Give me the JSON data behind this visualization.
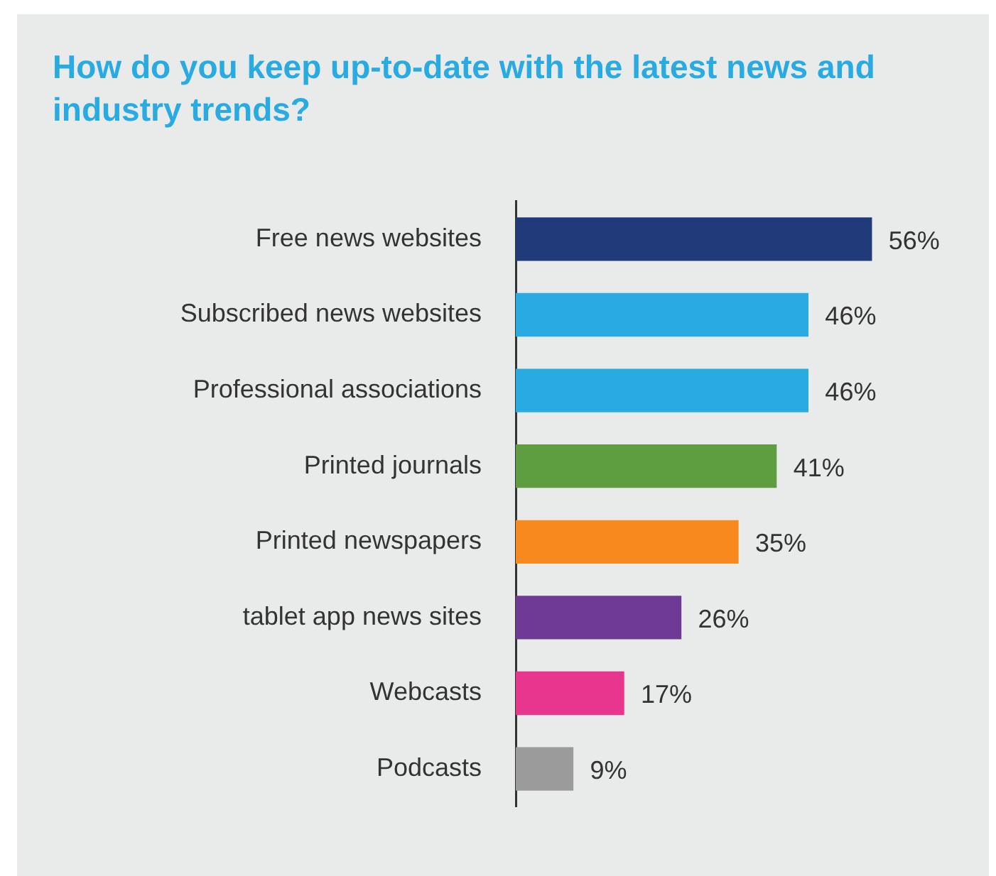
{
  "chart_data": {
    "type": "bar",
    "orientation": "horizontal",
    "title": "How do you keep up-to-date with the latest news and industry trends?",
    "categories": [
      "Free news websites",
      "Subscribed news websites",
      "Professional associations",
      "Printed journals",
      "Printed newspapers",
      "tablet app news sites",
      "Webcasts",
      "Podcasts"
    ],
    "values": [
      56,
      46,
      46,
      41,
      35,
      26,
      17,
      9
    ],
    "colors": [
      "#213a7a",
      "#29abe2",
      "#29abe2",
      "#5f9e40",
      "#f7891f",
      "#6f3996",
      "#e8358e",
      "#9b9b9b"
    ],
    "value_labels": [
      "56%",
      "46%",
      "46%",
      "41%",
      "35%",
      "26%",
      "17%",
      "9%"
    ],
    "data_labels": true
  }
}
